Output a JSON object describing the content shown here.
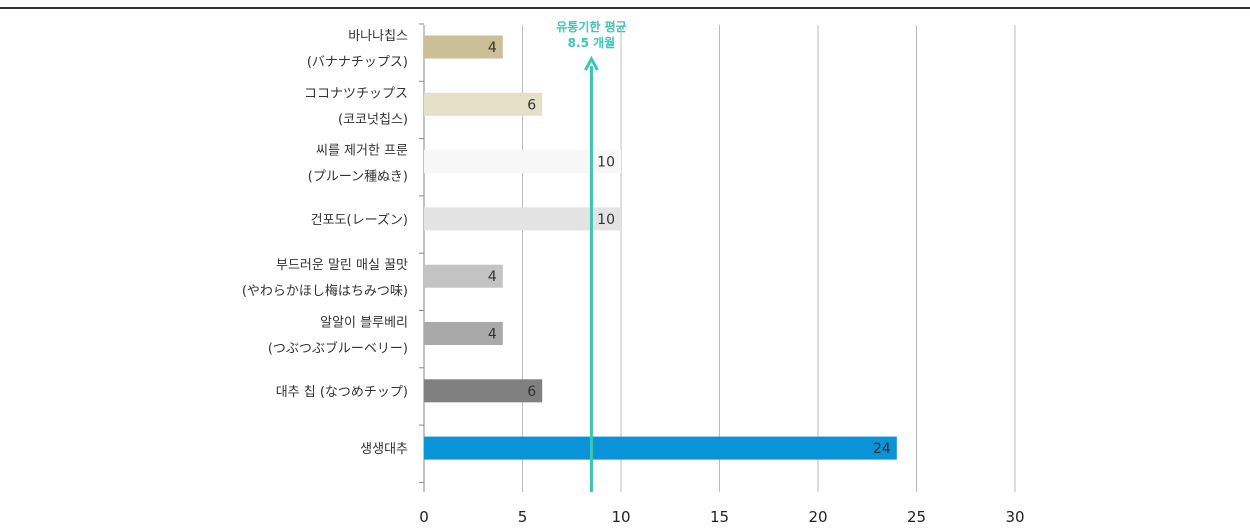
{
  "chart_data": {
    "type": "bar",
    "orientation": "horizontal",
    "categories": [
      [
        "바나나칩스",
        "(バナナチップス)"
      ],
      [
        "ココナツチップス",
        "(코코넛칩스)"
      ],
      [
        "씨를 제거한 프룬",
        "(プルーン種ぬき)"
      ],
      [
        "건포도(レーズン)"
      ],
      [
        "부드러운 말린 매실 꿀맛",
        "(やわらかほし梅はちみつ味)"
      ],
      [
        "알알이 블루베리",
        "(つぶつぶブルーベリー)"
      ],
      [
        "대추 칩 (なつめチップ)"
      ],
      [
        "생생대추"
      ]
    ],
    "values": [
      4,
      6,
      10,
      10,
      4,
      4,
      6,
      24
    ],
    "colors": [
      "#cbbf98",
      "#e5dfc7",
      "#f7f7f7",
      "#e3e3e3",
      "#c3c3c3",
      "#a9a9a9",
      "#808080",
      "#0b93d8"
    ],
    "xlim": [
      0,
      30
    ],
    "xticks": [
      0,
      5,
      10,
      15,
      20,
      25,
      30
    ],
    "grid": true,
    "average": {
      "value": 8.5,
      "label_line1": "유통기한 평균",
      "label_line2": "8.5 개월",
      "color": "#3cc6b4"
    }
  }
}
